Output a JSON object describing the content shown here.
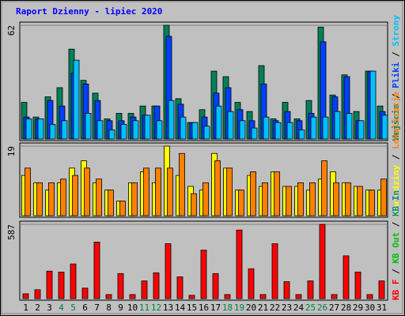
{
  "title": "Raport Dzienny -  lipiec 2020",
  "chart_data": [
    {
      "type": "bar",
      "ylim": [
        0,
        62
      ],
      "yticks": [
        62
      ],
      "legend_separator": "/",
      "series": [
        {
          "name": "Wejścia",
          "color": "#00805c",
          "values": [
            20,
            12,
            23,
            28,
            49,
            32,
            25,
            11,
            14,
            14,
            18,
            18,
            62,
            22,
            9,
            16,
            37,
            34,
            20,
            15,
            40,
            11,
            20,
            11,
            21,
            61,
            24,
            35,
            15,
            37,
            18
          ]
        },
        {
          "name": "Pliki",
          "color": "#0040ff",
          "values": [
            12,
            11,
            21,
            18,
            36,
            30,
            21,
            10,
            10,
            12,
            13,
            18,
            56,
            19,
            9,
            12,
            25,
            28,
            16,
            10,
            30,
            10,
            15,
            10,
            14,
            53,
            23,
            34,
            10,
            37,
            15
          ]
        },
        {
          "name": "Strony",
          "color": "#00c0ff",
          "values": [
            11,
            11,
            8,
            10,
            43,
            14,
            10,
            5,
            8,
            10,
            13,
            10,
            21,
            12,
            9,
            7,
            18,
            15,
            10,
            6,
            12,
            9,
            9,
            5,
            12,
            12,
            15,
            14,
            10,
            37,
            13
          ]
        }
      ]
    },
    {
      "type": "bar",
      "ylim": [
        0,
        19
      ],
      "yticks": [
        19
      ],
      "legend_separator": "/",
      "series": [
        {
          "name": "Odwiedziny",
          "color": "#ffff00",
          "values": [
            11,
            9,
            7,
            9,
            13,
            15,
            9,
            7,
            4,
            9,
            12,
            9,
            19,
            11,
            8,
            7,
            17,
            13,
            7,
            11,
            8,
            12,
            8,
            8,
            7,
            10,
            12,
            9,
            8,
            7,
            7
          ]
        },
        {
          "name": "Lokalizacje",
          "color": "#ff8000",
          "values": [
            13,
            9,
            9,
            10,
            11,
            13,
            10,
            7,
            4,
            9,
            13,
            13,
            13,
            17,
            6,
            9,
            15,
            13,
            7,
            12,
            9,
            12,
            8,
            9,
            9,
            15,
            9,
            9,
            8,
            7,
            10
          ]
        }
      ]
    },
    {
      "type": "bar",
      "ylim": [
        0,
        587
      ],
      "yticks": [
        587
      ],
      "legend_separator": "/",
      "categories": [
        "1",
        "2",
        "3",
        "4",
        "5",
        "6",
        "7",
        "8",
        "9",
        "10",
        "11",
        "12",
        "13",
        "14",
        "15",
        "16",
        "17",
        "18",
        "19",
        "20",
        "21",
        "22",
        "23",
        "24",
        "25",
        "26",
        "27",
        "28",
        "29",
        "30",
        "31"
      ],
      "category_colors": [
        "#000000",
        "#000000",
        "#000000",
        "#008040",
        "#008040",
        "#000000",
        "#000000",
        "#000000",
        "#000000",
        "#000000",
        "#008040",
        "#008040",
        "#000000",
        "#000000",
        "#000000",
        "#000000",
        "#000000",
        "#008040",
        "#008040",
        "#000000",
        "#000000",
        "#000000",
        "#000000",
        "#000000",
        "#008040",
        "#008040",
        "#000000",
        "#000000",
        "#000000",
        "#000000",
        "#000000"
      ],
      "legend_names": [
        {
          "name": "KB Out",
          "color": "#00c000"
        },
        {
          "name": "KB In",
          "color": "#0080c0"
        }
      ],
      "series": [
        {
          "name": "KB F",
          "color": "#ff0000",
          "values": [
            38,
            70,
            217,
            210,
            274,
            83,
            447,
            32,
            198,
            32,
            140,
            204,
            434,
            172,
            26,
            383,
            198,
            32,
            542,
            236,
            32,
            434,
            134,
            32,
            140,
            587,
            32,
            338,
            210,
            32,
            140
          ]
        }
      ]
    }
  ]
}
